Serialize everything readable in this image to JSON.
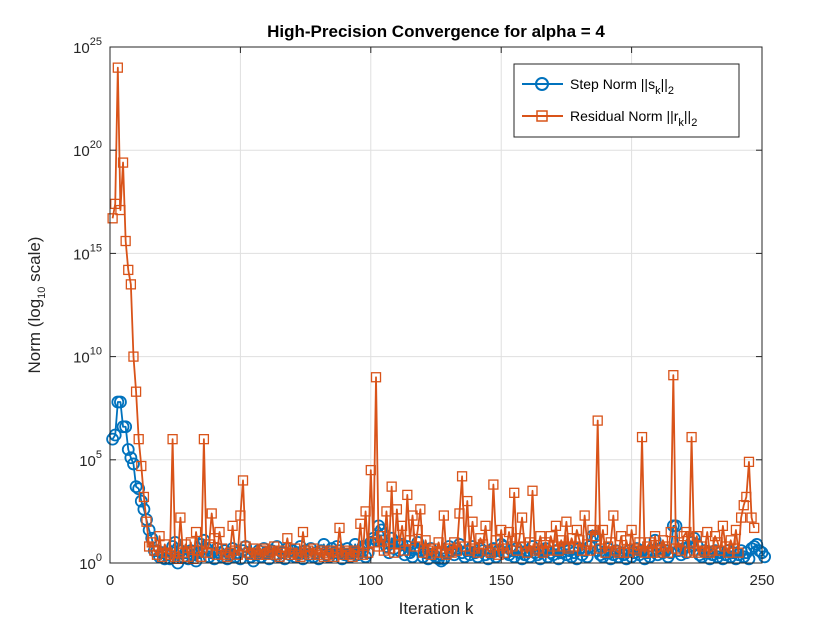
{
  "chart_data": {
    "type": "line",
    "title": "High-Precision Convergence for alpha = 4",
    "xlabel": "Iteration k",
    "ylabel": {
      "pre": "Norm (log",
      "sub": "10",
      "post": " scale)"
    },
    "xlim": [
      0,
      250
    ],
    "ylog_range": [
      0,
      25
    ],
    "x_ticks": [
      0,
      50,
      100,
      150,
      200,
      250
    ],
    "y_ticks": [
      {
        "base": "10",
        "exp": "0",
        "value": 0
      },
      {
        "base": "10",
        "exp": "5",
        "value": 5
      },
      {
        "base": "10",
        "exp": "10",
        "value": 10
      },
      {
        "base": "10",
        "exp": "15",
        "value": 15
      },
      {
        "base": "10",
        "exp": "20",
        "value": 20
      },
      {
        "base": "10",
        "exp": "25",
        "value": 25
      }
    ],
    "grid": true,
    "legend_position": "top-right",
    "colors": {
      "step": "#0072BD",
      "residual": "#D95319"
    },
    "series": [
      {
        "name": "Step Norm",
        "label_main": "Step Norm ||s",
        "label_sub": "k",
        "label_end": "||",
        "label_end_sub": "2",
        "marker": "circle",
        "color": "#0072BD",
        "log10_values": [
          6.0,
          6.2,
          7.8,
          7.8,
          6.6,
          6.6,
          5.5,
          5.1,
          4.8,
          3.7,
          3.6,
          3.0,
          2.6,
          2.1,
          1.6,
          1.2,
          0.6,
          0.6,
          0.3,
          0.5,
          0.2,
          0.4,
          0.2,
          0.8,
          1.0,
          0.0,
          0.6,
          0.3,
          0.5,
          0.2,
          0.6,
          0.4,
          0.1,
          0.5,
          0.9,
          1.1,
          0.7,
          0.3,
          0.5,
          0.2,
          0.7,
          0.5,
          0.3,
          0.6,
          0.2,
          0.4,
          0.7,
          0.3,
          0.5,
          0.2,
          0.6,
          0.8,
          0.5,
          0.3,
          0.1,
          0.4,
          0.6,
          0.3,
          0.7,
          0.5,
          0.2,
          0.6,
          0.4,
          0.8,
          0.3,
          0.5,
          0.2,
          0.7,
          0.4,
          0.6,
          0.3,
          0.5,
          0.8,
          0.2,
          0.6,
          0.4,
          0.7,
          0.3,
          0.5,
          0.2,
          0.6,
          0.9,
          0.4,
          0.3,
          0.7,
          0.5,
          0.8,
          0.6,
          0.2,
          0.4,
          0.7,
          0.3,
          0.5,
          0.9,
          0.4,
          0.6,
          0.8,
          0.3,
          0.5,
          1.0,
          1.2,
          1.1,
          1.8,
          1.6,
          1.4,
          0.8,
          0.5,
          1.2,
          0.7,
          1.0,
          0.6,
          0.9,
          0.4,
          0.8,
          0.5,
          0.3,
          0.7,
          1.0,
          0.6,
          0.3,
          0.5,
          0.2,
          0.7,
          0.4,
          0.3,
          0.2,
          0.1,
          0.2,
          0.5,
          0.8,
          0.6,
          0.4,
          0.7,
          0.9,
          0.5,
          0.3,
          0.6,
          0.4,
          0.8,
          0.5,
          0.3,
          0.7,
          0.6,
          0.4,
          0.2,
          0.5,
          0.7,
          0.3,
          0.6,
          0.9,
          0.8,
          0.5,
          0.4,
          0.6,
          0.3,
          0.7,
          0.5,
          0.2,
          0.4,
          0.6,
          0.3,
          0.8,
          0.5,
          0.4,
          0.2,
          0.6,
          0.7,
          0.3,
          0.5,
          0.4,
          0.6,
          0.2,
          0.5,
          0.7,
          0.4,
          0.6,
          0.3,
          0.5,
          0.2,
          0.7,
          0.4,
          0.6,
          0.3,
          0.8,
          1.3,
          1.3,
          0.6,
          0.4,
          0.3,
          0.5,
          0.7,
          0.2,
          0.4,
          0.6,
          0.3,
          0.5,
          0.4,
          0.2,
          0.6,
          0.3,
          0.5,
          0.7,
          0.4,
          0.6,
          0.2,
          0.5,
          0.3,
          0.6,
          1.1,
          0.4,
          0.7,
          0.5,
          0.6,
          0.3,
          0.5,
          1.8,
          1.8,
          0.6,
          0.4,
          0.7,
          0.5,
          0.8,
          1.0,
          1.2,
          0.9,
          0.4,
          0.3,
          0.6,
          0.5,
          0.2,
          0.4,
          0.6,
          0.3,
          0.5,
          0.2,
          0.4,
          0.6,
          0.3,
          0.5,
          0.2,
          0.4,
          0.6,
          0.3,
          0.5,
          0.2,
          0.7,
          0.8,
          0.9,
          0.6,
          0.5,
          0.3
        ]
      },
      {
        "name": "Residual Norm",
        "label_main": "Residual Norm ||r",
        "label_sub": "k",
        "label_end": "||",
        "label_end_sub": "2",
        "marker": "square",
        "color": "#D95319",
        "log10_values": [
          16.7,
          17.4,
          24.0,
          17.1,
          19.4,
          15.6,
          14.2,
          13.5,
          10.0,
          8.3,
          6.0,
          4.7,
          3.2,
          2.0,
          0.8,
          1.0,
          0.6,
          0.4,
          1.3,
          0.3,
          0.9,
          0.5,
          0.4,
          6.0,
          0.3,
          0.2,
          2.2,
          0.5,
          0.9,
          0.3,
          1.0,
          0.2,
          1.5,
          0.6,
          0.3,
          6.0,
          0.5,
          0.9,
          2.4,
          1.2,
          0.4,
          1.5,
          0.7,
          0.4,
          0.3,
          0.5,
          1.8,
          0.6,
          0.4,
          2.3,
          4.0,
          0.8,
          0.5,
          0.4,
          0.7,
          0.5,
          0.4,
          0.6,
          0.7,
          0.4,
          0.5,
          0.6,
          0.8,
          0.4,
          0.3,
          0.6,
          0.5,
          1.2,
          0.4,
          0.5,
          0.7,
          0.4,
          0.3,
          1.5,
          0.5,
          0.6,
          0.4,
          0.7,
          0.5,
          0.4,
          0.6,
          0.3,
          0.5,
          0.4,
          0.6,
          0.3,
          0.5,
          1.7,
          0.4,
          0.6,
          0.5,
          0.4,
          0.3,
          0.6,
          0.5,
          1.9,
          0.4,
          2.5,
          0.5,
          4.5,
          1.0,
          9.0,
          0.8,
          1.3,
          0.6,
          2.5,
          0.7,
          3.7,
          0.5,
          2.6,
          0.9,
          1.8,
          0.6,
          3.3,
          1.1,
          2.3,
          0.8,
          1.6,
          2.6,
          0.5,
          1.1,
          0.6,
          0.4,
          0.7,
          0.5,
          1.0,
          0.5,
          2.3,
          0.4,
          0.7,
          0.5,
          1.0,
          0.6,
          2.4,
          4.2,
          0.8,
          3.0,
          0.6,
          2.0,
          0.7,
          0.5,
          1.2,
          0.9,
          1.8,
          0.6,
          0.5,
          3.8,
          1.1,
          0.4,
          1.6,
          0.5,
          0.7,
          1.5,
          0.8,
          3.4,
          0.6,
          1.2,
          2.2,
          0.8,
          0.5,
          1.0,
          3.5,
          0.6,
          0.7,
          1.3,
          0.5,
          1.0,
          0.6,
          1.3,
          0.8,
          1.8,
          0.6,
          1.1,
          0.8,
          2.0,
          0.7,
          1.2,
          0.8,
          1.6,
          1.1,
          0.6,
          2.3,
          0.9,
          0.6,
          1.6,
          1.3,
          6.9,
          0.7,
          1.6,
          0.5,
          0.8,
          1.0,
          2.3,
          0.6,
          0.5,
          1.3,
          0.5,
          1.1,
          0.5,
          1.6,
          0.7,
          0.6,
          1.0,
          6.1,
          0.5,
          0.8,
          1.0,
          0.5,
          1.3,
          0.5,
          0.6,
          1.1,
          0.8,
          0.5,
          1.5,
          9.1,
          0.7,
          1.0,
          0.6,
          1.3,
          1.5,
          0.5,
          6.1,
          0.6,
          1.3,
          0.5,
          0.8,
          0.6,
          1.5,
          0.5,
          0.6,
          1.3,
          1.0,
          0.6,
          1.8,
          0.8,
          0.5,
          1.1,
          0.7,
          1.6,
          0.5,
          2.2,
          2.8,
          3.2,
          4.9,
          2.2,
          1.7
        ]
      }
    ]
  }
}
